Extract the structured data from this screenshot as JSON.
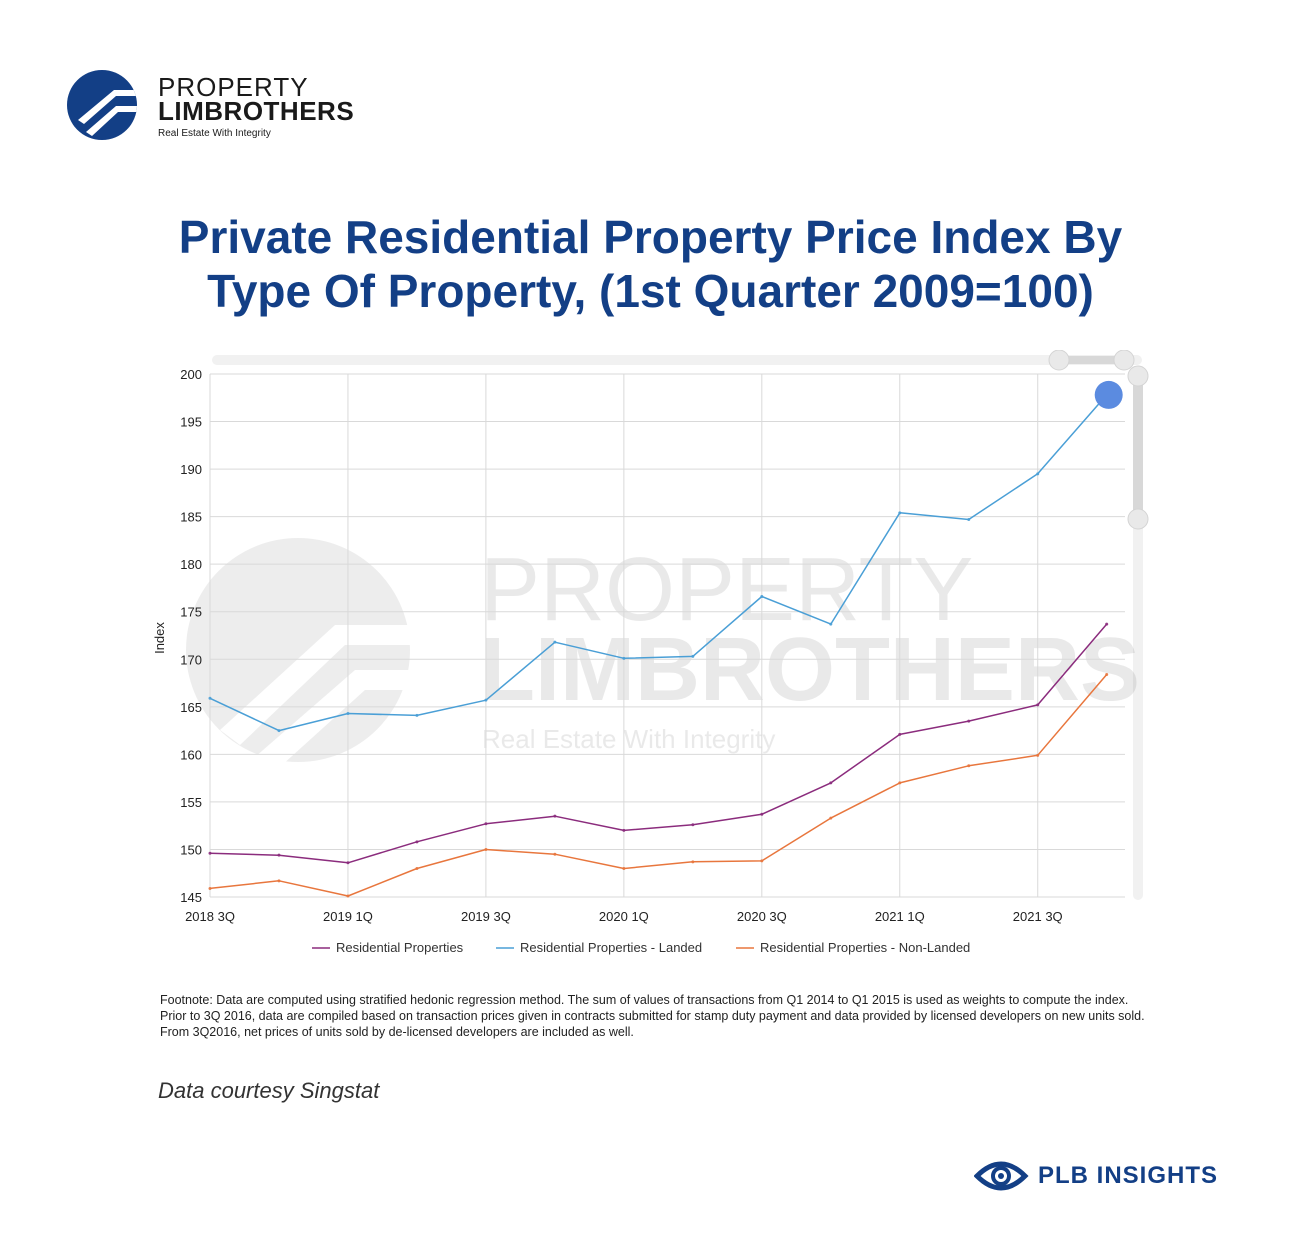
{
  "logo": {
    "line1": "PROPERTY",
    "line2": "LIMBROTHERS",
    "tagline": "Real Estate With Integrity",
    "color": "#133f86"
  },
  "title_line1": "Private Residential Property Price Index By",
  "title_line2": "Type Of Property, (1st Quarter 2009=100)",
  "chart_data": {
    "type": "line",
    "ylabel": "Index",
    "xlabel": "",
    "ylim": [
      145,
      200
    ],
    "yticks": [
      200,
      195,
      190,
      185,
      180,
      175,
      170,
      165,
      160,
      155,
      150,
      145
    ],
    "x_tick_labels": [
      "2018 3Q",
      "2019 1Q",
      "2019 3Q",
      "2020 1Q",
      "2020 3Q",
      "2021 1Q",
      "2021 3Q"
    ],
    "categories": [
      "2018 3Q",
      "2018 4Q",
      "2019 1Q",
      "2019 2Q",
      "2019 3Q",
      "2019 4Q",
      "2020 1Q",
      "2020 2Q",
      "2020 3Q",
      "2020 4Q",
      "2021 1Q",
      "2021 2Q",
      "2021 3Q",
      "2021 4Q"
    ],
    "grid": true,
    "legend_position": "bottom",
    "series": [
      {
        "name": "Residential Properties",
        "color": "#8b2c7d",
        "values": [
          149.6,
          149.4,
          148.6,
          150.8,
          152.7,
          153.5,
          152.0,
          152.6,
          153.7,
          157.0,
          162.1,
          163.5,
          165.2,
          173.7
        ]
      },
      {
        "name": "Residential Properties - Landed",
        "color": "#4a9fd6",
        "values": [
          165.9,
          162.5,
          164.3,
          164.1,
          165.7,
          171.8,
          170.1,
          170.3,
          176.6,
          173.7,
          185.4,
          184.7,
          189.5,
          197.8
        ]
      },
      {
        "name": "Residential Properties - Non-Landed",
        "color": "#e8763d",
        "values": [
          145.9,
          146.7,
          145.1,
          148.0,
          150.0,
          149.5,
          148.0,
          148.7,
          148.8,
          153.3,
          157.0,
          158.8,
          159.9,
          168.4
        ]
      }
    ],
    "watermark": {
      "line1": "PROPERTY",
      "line2": "LIMBROTHERS",
      "line3": "Real Estate With Integrity"
    },
    "highlight_color": "#5b8be0"
  },
  "footnote": "Footnote: Data are computed using stratified hedonic regression method. The sum of values of transactions from Q1 2014 to Q1 2015 is used as weights to compute the index. Prior to 3Q 2016, data are compiled based on transaction prices given in contracts submitted for stamp duty payment and data provided by licensed developers on new units sold. From 3Q2016, net prices of units sold by de-licensed developers are included as well.",
  "source": "Data courtesy Singstat",
  "brand": {
    "label": "PLB INSIGHTS",
    "icon": "eye-icon",
    "color": "#133f86"
  }
}
